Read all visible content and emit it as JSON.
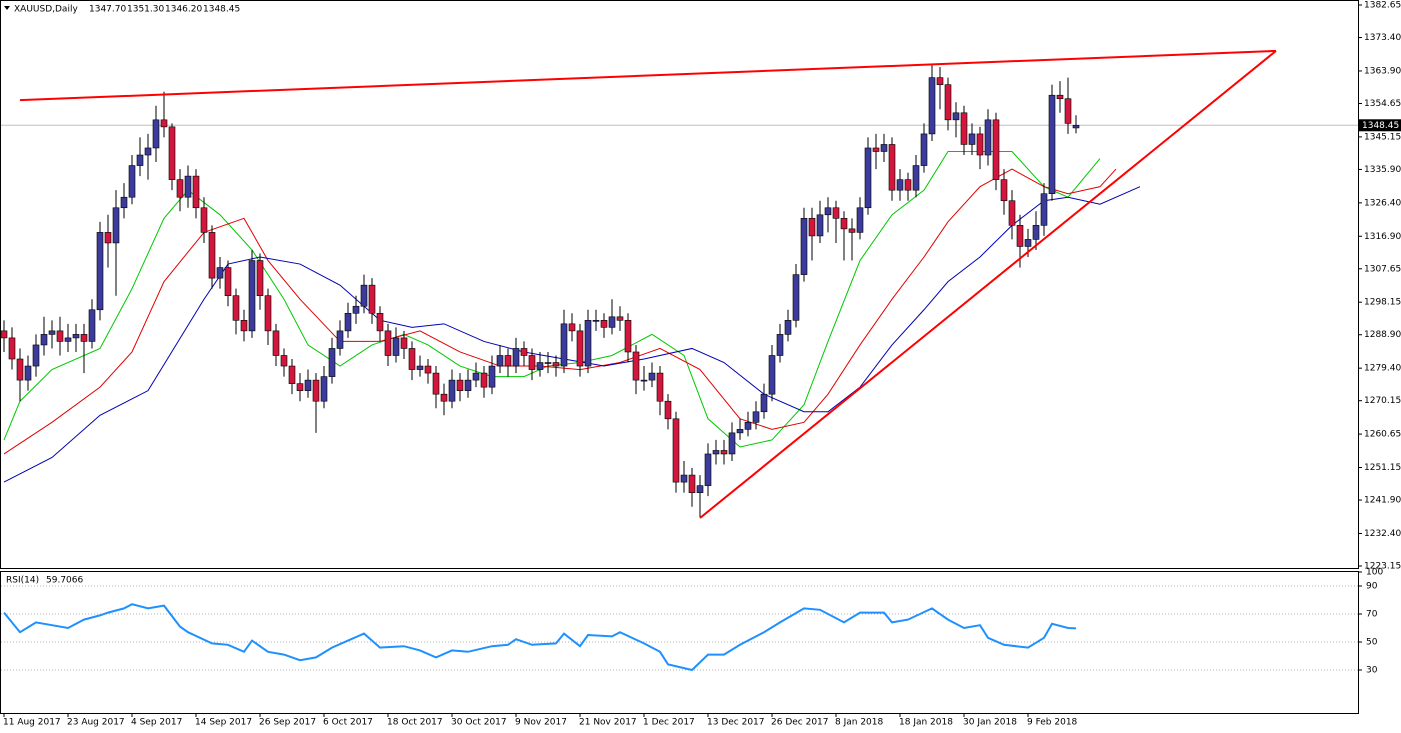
{
  "chart_data": {
    "type": "candlestick",
    "symbol": "XAUUSD,Daily",
    "last_bar_labels": [
      "1347.70",
      "1351.30",
      "1346.20",
      "1348.45"
    ],
    "categories": [
      "11 Aug 2017",
      null,
      null,
      null,
      null,
      null,
      null,
      null,
      "23 Aug 2017",
      null,
      null,
      null,
      null,
      null,
      null,
      null,
      "4 Sep 2017",
      null,
      null,
      null,
      null,
      null,
      null,
      null,
      "14 Sep 2017",
      null,
      null,
      null,
      null,
      null,
      null,
      null,
      "26 Sep 2017",
      null,
      null,
      null,
      null,
      null,
      null,
      null,
      "6 Oct 2017",
      null,
      null,
      null,
      null,
      null,
      null,
      null,
      "18 Oct 2017",
      null,
      null,
      null,
      null,
      null,
      null,
      null,
      "30 Oct 2017",
      null,
      null,
      null,
      null,
      null,
      null,
      null,
      "9 Nov 2017",
      null,
      null,
      null,
      null,
      null,
      null,
      null,
      "21 Nov 2017",
      null,
      null,
      null,
      null,
      null,
      null,
      null,
      "1 Dec 2017",
      null,
      null,
      null,
      null,
      null,
      null,
      null,
      "13 Dec 2017",
      null,
      null,
      null,
      null,
      null,
      null,
      null,
      "26 Dec 2017",
      null,
      null,
      null,
      null,
      null,
      null,
      null,
      "8 Jan 2018",
      null,
      null,
      null,
      null,
      null,
      null,
      null,
      "18 Jan 2018",
      null,
      null,
      null,
      null,
      null,
      null,
      null,
      "30 Jan 2018",
      null,
      null,
      null,
      null,
      null,
      null,
      null,
      "9 Feb 2018",
      null,
      null,
      null,
      null,
      null,
      null
    ],
    "ohlc": [
      [
        1290,
        1293,
        1284,
        1288
      ],
      [
        1288,
        1291,
        1279,
        1282
      ],
      [
        1282,
        1285,
        1270,
        1276
      ],
      [
        1276,
        1283,
        1273,
        1280
      ],
      [
        1280,
        1289,
        1277,
        1286
      ],
      [
        1286,
        1294,
        1283,
        1289
      ],
      [
        1289,
        1293,
        1285,
        1290
      ],
      [
        1290,
        1294,
        1283,
        1287
      ],
      [
        1287,
        1292,
        1284,
        1288
      ],
      [
        1288,
        1292,
        1284,
        1289
      ],
      [
        1289,
        1292,
        1278,
        1287
      ],
      [
        1287,
        1299,
        1285,
        1296
      ],
      [
        1296,
        1321,
        1293,
        1318
      ],
      [
        1318,
        1323,
        1308,
        1315
      ],
      [
        1315,
        1330,
        1300,
        1325
      ],
      [
        1325,
        1332,
        1322,
        1328
      ],
      [
        1328,
        1340,
        1326,
        1337
      ],
      [
        1337,
        1345,
        1334,
        1340
      ],
      [
        1340,
        1346,
        1333,
        1342
      ],
      [
        1342,
        1354,
        1338,
        1350
      ],
      [
        1350,
        1358,
        1345,
        1348
      ],
      [
        1348,
        1349,
        1330,
        1333
      ],
      [
        1333,
        1336,
        1324,
        1328
      ],
      [
        1328,
        1337,
        1325,
        1334
      ],
      [
        1334,
        1336,
        1322,
        1325
      ],
      [
        1325,
        1328,
        1315,
        1318
      ],
      [
        1318,
        1320,
        1302,
        1305
      ],
      [
        1305,
        1311,
        1302,
        1308
      ],
      [
        1308,
        1310,
        1297,
        1300
      ],
      [
        1300,
        1302,
        1289,
        1293
      ],
      [
        1293,
        1296,
        1287,
        1290
      ],
      [
        1290,
        1313,
        1288,
        1310
      ],
      [
        1310,
        1312,
        1296,
        1300
      ],
      [
        1300,
        1302,
        1286,
        1290
      ],
      [
        1290,
        1292,
        1280,
        1283
      ],
      [
        1283,
        1285,
        1277,
        1280
      ],
      [
        1280,
        1282,
        1272,
        1275
      ],
      [
        1275,
        1278,
        1270,
        1273
      ],
      [
        1273,
        1279,
        1271,
        1276
      ],
      [
        1276,
        1278,
        1261,
        1270
      ],
      [
        1270,
        1280,
        1268,
        1277
      ],
      [
        1277,
        1288,
        1275,
        1285
      ],
      [
        1285,
        1293,
        1283,
        1290
      ],
      [
        1290,
        1298,
        1288,
        1295
      ],
      [
        1295,
        1300,
        1292,
        1297
      ],
      [
        1297,
        1306,
        1295,
        1303
      ],
      [
        1303,
        1305,
        1292,
        1295
      ],
      [
        1295,
        1297,
        1287,
        1290
      ],
      [
        1290,
        1292,
        1280,
        1283
      ],
      [
        1283,
        1291,
        1281,
        1288
      ],
      [
        1288,
        1290,
        1282,
        1285
      ],
      [
        1285,
        1287,
        1276,
        1279
      ],
      [
        1279,
        1283,
        1277,
        1280
      ],
      [
        1280,
        1282,
        1275,
        1278
      ],
      [
        1278,
        1280,
        1268,
        1272
      ],
      [
        1272,
        1275,
        1266,
        1270
      ],
      [
        1270,
        1279,
        1268,
        1276
      ],
      [
        1276,
        1278,
        1270,
        1273
      ],
      [
        1273,
        1279,
        1271,
        1276
      ],
      [
        1276,
        1281,
        1274,
        1278
      ],
      [
        1278,
        1280,
        1271,
        1274
      ],
      [
        1274,
        1283,
        1272,
        1280
      ],
      [
        1280,
        1286,
        1278,
        1283
      ],
      [
        1283,
        1285,
        1277,
        1280
      ],
      [
        1280,
        1288,
        1278,
        1285
      ],
      [
        1285,
        1287,
        1280,
        1283
      ],
      [
        1283,
        1285,
        1276,
        1279
      ],
      [
        1279,
        1284,
        1277,
        1281
      ],
      [
        1281,
        1284,
        1278,
        1281
      ],
      [
        1281,
        1283,
        1277,
        1280
      ],
      [
        1280,
        1296,
        1278,
        1292
      ],
      [
        1292,
        1295,
        1287,
        1290
      ],
      [
        1290,
        1292,
        1277,
        1280
      ],
      [
        1280,
        1296,
        1278,
        1293
      ],
      [
        1293,
        1296,
        1290,
        1293
      ],
      [
        1293,
        1295,
        1288,
        1291
      ],
      [
        1291,
        1299,
        1289,
        1294
      ],
      [
        1294,
        1297,
        1290,
        1293
      ],
      [
        1293,
        1295,
        1281,
        1284
      ],
      [
        1284,
        1286,
        1272,
        1276
      ],
      [
        1276,
        1280,
        1273,
        1276
      ],
      [
        1276,
        1281,
        1274,
        1278
      ],
      [
        1278,
        1280,
        1266,
        1270
      ],
      [
        1270,
        1272,
        1262,
        1265
      ],
      [
        1265,
        1267,
        1244,
        1247
      ],
      [
        1247,
        1253,
        1244,
        1249
      ],
      [
        1249,
        1251,
        1240,
        1244
      ],
      [
        1244,
        1249,
        1237,
        1246
      ],
      [
        1246,
        1258,
        1243,
        1255
      ],
      [
        1255,
        1259,
        1252,
        1256
      ],
      [
        1256,
        1259,
        1252,
        1255
      ],
      [
        1255,
        1264,
        1253,
        1261
      ],
      [
        1261,
        1265,
        1259,
        1262
      ],
      [
        1262,
        1267,
        1260,
        1264
      ],
      [
        1264,
        1270,
        1262,
        1267
      ],
      [
        1267,
        1275,
        1265,
        1272
      ],
      [
        1272,
        1286,
        1270,
        1283
      ],
      [
        1283,
        1292,
        1281,
        1289
      ],
      [
        1289,
        1296,
        1287,
        1293
      ],
      [
        1293,
        1309,
        1291,
        1306
      ],
      [
        1306,
        1325,
        1304,
        1322
      ],
      [
        1322,
        1325,
        1310,
        1317
      ],
      [
        1317,
        1327,
        1315,
        1323
      ],
      [
        1323,
        1328,
        1318,
        1325
      ],
      [
        1325,
        1327,
        1315,
        1322
      ],
      [
        1322,
        1324,
        1310,
        1319
      ],
      [
        1319,
        1322,
        1310,
        1318
      ],
      [
        1318,
        1328,
        1316,
        1325
      ],
      [
        1325,
        1345,
        1323,
        1342
      ],
      [
        1342,
        1346,
        1336,
        1341
      ],
      [
        1341,
        1346,
        1338,
        1343
      ],
      [
        1343,
        1345,
        1327,
        1330
      ],
      [
        1330,
        1336,
        1327,
        1333
      ],
      [
        1333,
        1335,
        1327,
        1330
      ],
      [
        1330,
        1340,
        1328,
        1337
      ],
      [
        1337,
        1349,
        1335,
        1346
      ],
      [
        1346,
        1366,
        1344,
        1362
      ],
      [
        1362,
        1365,
        1353,
        1360
      ],
      [
        1360,
        1362,
        1347,
        1350
      ],
      [
        1350,
        1355,
        1345,
        1352
      ],
      [
        1352,
        1354,
        1340,
        1343
      ],
      [
        1343,
        1349,
        1340,
        1346
      ],
      [
        1346,
        1348,
        1336,
        1340
      ],
      [
        1340,
        1353,
        1337,
        1350
      ],
      [
        1350,
        1352,
        1330,
        1333
      ],
      [
        1333,
        1336,
        1323,
        1327
      ],
      [
        1327,
        1330,
        1316,
        1320
      ],
      [
        1320,
        1323,
        1308,
        1314
      ],
      [
        1314,
        1319,
        1311,
        1316
      ],
      [
        1316,
        1324,
        1313,
        1320
      ],
      [
        1320,
        1332,
        1317,
        1329
      ],
      [
        1329,
        1360,
        1327,
        1357
      ],
      [
        1357,
        1361,
        1352,
        1356
      ],
      [
        1356,
        1362,
        1346,
        1349
      ],
      [
        1347.7,
        1351.3,
        1346.2,
        1348.45
      ]
    ],
    "up_color": "#3b3b9b",
    "down_color": "#d4163c",
    "ylim": [
      1223.15,
      1382.65
    ],
    "yticks": [
      1382.65,
      {
        "value": 1373.4,
        "label": "1373.40"
      },
      {
        "value": 1363.9,
        "label": "1363.90"
      },
      1354.65,
      1345.15,
      {
        "value": 1335.9,
        "label": "1335.90"
      },
      {
        "value": 1326.4,
        "label": "1326.40"
      },
      {
        "value": 1316.9,
        "label": "1316.90"
      },
      1307.65,
      1298.15,
      {
        "value": 1288.9,
        "label": "1288.90"
      },
      {
        "value": 1279.4,
        "label": "1279.40"
      },
      1270.15,
      1260.65,
      1251.15,
      {
        "value": 1241.9,
        "label": "1241.90"
      },
      {
        "value": 1232.4,
        "label": "1232.40"
      },
      1223.15
    ],
    "moving_averages": [
      {
        "color": "#00c800",
        "x": [
          0,
          2,
          6,
          12,
          16,
          20,
          23,
          27,
          31,
          35,
          38,
          42,
          46,
          50,
          53,
          57,
          61,
          65,
          68,
          72,
          76,
          81,
          85,
          88,
          92,
          96,
          100,
          103,
          107,
          111,
          115,
          118,
          122,
          126,
          130,
          133,
          137
        ],
        "values": [
          1259,
          1270,
          1279,
          1285,
          1302,
          1322,
          1330,
          1323,
          1313,
          1299,
          1286,
          1280,
          1286,
          1289,
          1286,
          1280,
          1277,
          1277,
          1280,
          1281,
          1283,
          1289,
          1283,
          1265,
          1257,
          1259,
          1269,
          1287,
          1310,
          1323,
          1330,
          1341,
          1341,
          1341,
          1331,
          1328,
          1339
        ]
      },
      {
        "color": "#e00000",
        "x": [
          0,
          6,
          12,
          16,
          20,
          25,
          30,
          33,
          37,
          42,
          47,
          52,
          57,
          62,
          67,
          72,
          77,
          82,
          87,
          92,
          96,
          100,
          103,
          107,
          111,
          115,
          118,
          122,
          126,
          130,
          133,
          137,
          139
        ],
        "values": [
          1255,
          1264,
          1274,
          1284,
          1304,
          1318,
          1322,
          1310,
          1299,
          1287,
          1287,
          1290,
          1284,
          1280,
          1280,
          1279,
          1281,
          1285,
          1279,
          1265,
          1262,
          1264,
          1272,
          1286,
          1299,
          1311,
          1321,
          1331,
          1336,
          1331,
          1329,
          1331,
          1336
        ]
      },
      {
        "color": "#0000b4",
        "x": [
          0,
          6,
          12,
          18,
          25,
          28,
          32,
          37,
          42,
          47,
          51,
          55,
          60,
          65,
          70,
          75,
          80,
          86,
          90,
          95,
          100,
          103,
          107,
          111,
          115,
          118,
          122,
          126,
          130,
          133,
          137,
          142
        ],
        "values": [
          1247,
          1254,
          1266,
          1273,
          1299,
          1309,
          1311,
          1309,
          1303,
          1293,
          1291,
          1292,
          1287,
          1284,
          1282,
          1280,
          1282,
          1285,
          1281,
          1272,
          1267,
          1267,
          1274,
          1286,
          1296,
          1304,
          1311,
          1320,
          1327,
          1328,
          1326,
          1331
        ]
      }
    ],
    "trendlines": [
      {
        "color": "#ff0000",
        "x": [
          2,
          159
        ],
        "values": [
          1355.6,
          1369.6
        ]
      },
      {
        "color": "#ff0000",
        "x": [
          87,
          159
        ],
        "values": [
          1236.8,
          1369.6
        ]
      }
    ],
    "rsi": {
      "name": "RSI(14)",
      "color": "#1e90ff",
      "ylim": [
        0,
        100
      ],
      "yticks": [
        100,
        90,
        70,
        50,
        30
      ],
      "x": [
        0,
        2,
        4,
        6,
        8,
        10,
        12,
        13,
        15,
        16,
        18,
        20,
        22,
        23,
        26,
        28,
        30,
        31,
        33,
        35,
        37,
        39,
        41,
        43,
        45,
        47,
        50,
        52,
        54,
        56,
        58,
        61,
        63,
        64,
        66,
        69,
        70,
        72,
        73,
        76,
        77,
        80,
        82,
        83,
        86,
        88,
        90,
        92,
        95,
        97,
        100,
        102,
        105,
        107,
        110,
        111,
        113,
        116,
        118,
        120,
        122,
        123,
        125,
        128,
        130,
        131,
        133,
        134
      ],
      "values": [
        71,
        57,
        64,
        62,
        60,
        66,
        69,
        71,
        74,
        77,
        74,
        76,
        61,
        57,
        49,
        48,
        43,
        51,
        43,
        41,
        37,
        39,
        46,
        51,
        56,
        46,
        47,
        44,
        39,
        44,
        43,
        47,
        48,
        52,
        48,
        49,
        56,
        47,
        55,
        54,
        57,
        49,
        43,
        34,
        30,
        41,
        41,
        48,
        57,
        64,
        74,
        73,
        64,
        71,
        71,
        64,
        66,
        74,
        66,
        60,
        62,
        53,
        48,
        46,
        53,
        63,
        60,
        59.7066
      ]
    }
  }
}
